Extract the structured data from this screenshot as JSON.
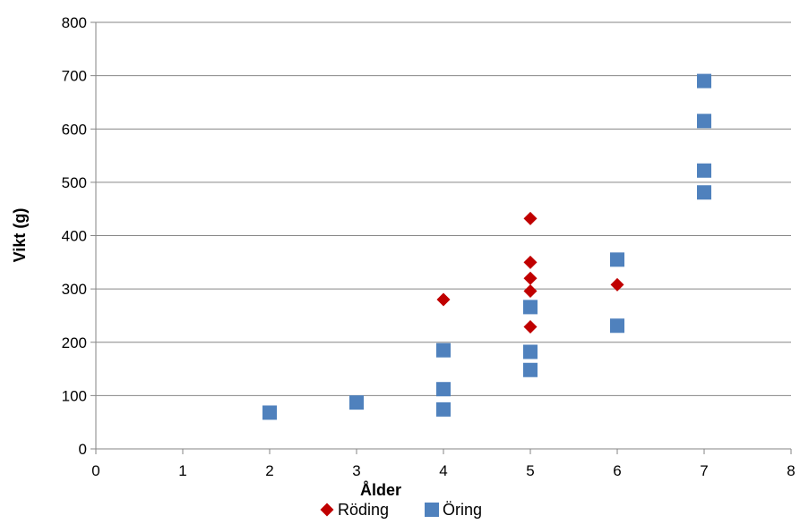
{
  "chart_data": {
    "type": "scatter",
    "title": "",
    "xlabel": "Ålder",
    "ylabel": "Vikt (g)",
    "xlim": [
      0,
      8
    ],
    "ylim": [
      0,
      800
    ],
    "xticks": [
      0,
      1,
      2,
      3,
      4,
      5,
      6,
      7,
      8
    ],
    "yticks": [
      0,
      100,
      200,
      300,
      400,
      500,
      600,
      700,
      800
    ],
    "grid": "horizontal",
    "legend_position": "bottom",
    "series": [
      {
        "name": "Röding",
        "marker": "diamond",
        "color": "#c00000",
        "points": [
          {
            "x": 4,
            "y": 280
          },
          {
            "x": 5,
            "y": 432
          },
          {
            "x": 5,
            "y": 350
          },
          {
            "x": 5,
            "y": 320
          },
          {
            "x": 5,
            "y": 296
          },
          {
            "x": 5,
            "y": 229
          },
          {
            "x": 6,
            "y": 308
          }
        ]
      },
      {
        "name": "Öring",
        "marker": "square",
        "color": "#4f81bd",
        "points": [
          {
            "x": 2,
            "y": 68
          },
          {
            "x": 3,
            "y": 87
          },
          {
            "x": 4,
            "y": 185
          },
          {
            "x": 4,
            "y": 112
          },
          {
            "x": 4,
            "y": 74
          },
          {
            "x": 5,
            "y": 266
          },
          {
            "x": 5,
            "y": 182
          },
          {
            "x": 5,
            "y": 148
          },
          {
            "x": 6,
            "y": 355
          },
          {
            "x": 6,
            "y": 231
          },
          {
            "x": 7,
            "y": 690
          },
          {
            "x": 7,
            "y": 615
          },
          {
            "x": 7,
            "y": 522
          },
          {
            "x": 7,
            "y": 481
          }
        ]
      }
    ]
  }
}
